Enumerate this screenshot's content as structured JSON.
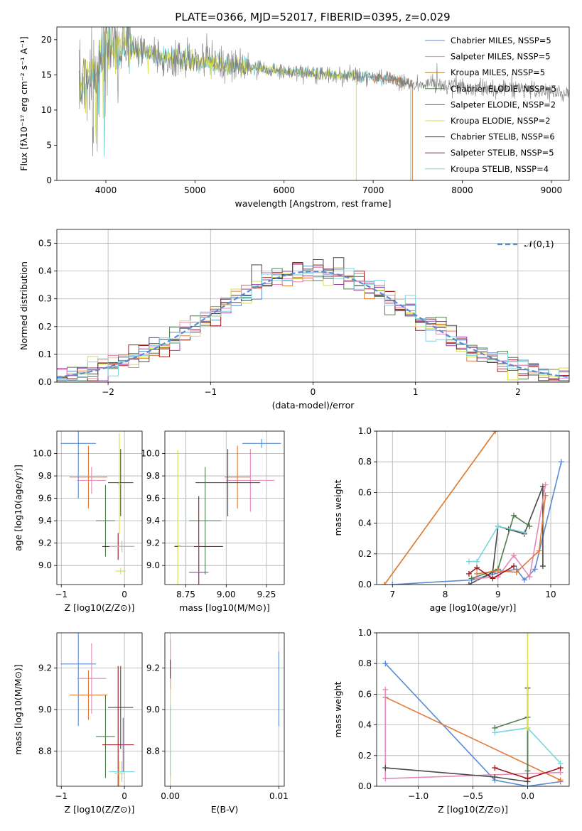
{
  "figure": {
    "title": "PLATE=0366, MJD=52017, FIBERID=0395, z=0.029"
  },
  "chart_data": [
    {
      "id": "spectrum",
      "type": "line",
      "xlabel": "wavelength [Angstrom, rest frame]",
      "ylabel": "Flux [fλ10⁻¹⁷ erg cm⁻² s⁻¹ A⁻¹]",
      "xlim": [
        3450,
        9200
      ],
      "ylim": [
        0,
        21.8
      ],
      "xticks": [
        4000,
        5000,
        6000,
        7000,
        8000,
        9000
      ],
      "yticks": [
        0,
        5,
        10,
        15,
        20
      ],
      "grid": false,
      "legend_position": "top-right",
      "legend": [
        {
          "label": "Chabrier MILES, N_SSP=5",
          "color": "#5b8bd5"
        },
        {
          "label": "Salpeter MILES, N_SSP=5",
          "color": "#e787b9"
        },
        {
          "label": "Kroupa MILES, N_SSP=5",
          "color": "#b87f2b"
        },
        {
          "label": "Chabrier ELODIE, N_SSP=5",
          "color": "#4f7f4f"
        },
        {
          "label": "Salpeter ELODIE, N_SSP=2",
          "color": "#9a43a8"
        },
        {
          "label": "Kroupa ELODIE, N_SSP=2",
          "color": "#d8e04a"
        },
        {
          "label": "Chabrier STELIB, N_SSP=6",
          "color": "#4a4a4a"
        },
        {
          "label": "Salpeter STELIB, N_SSP=5",
          "color": "#a01a1a"
        },
        {
          "label": "Kroupa STELIB, N_SSP=4",
          "color": "#7ad6dc"
        }
      ],
      "continuum": {
        "x": [
          3700,
          3800,
          3900,
          4000,
          4100,
          4200,
          4400,
          4600,
          4800,
          5000,
          5200,
          5400,
          5600,
          5800,
          6000,
          6200,
          6400,
          6600,
          6800,
          7000,
          7200,
          7400,
          7600,
          7800,
          8000,
          8200,
          8400,
          8600,
          8800,
          9000,
          9200
        ],
        "y": [
          12.5,
          14.5,
          16,
          18.5,
          18.8,
          19.2,
          18.3,
          17.7,
          17.2,
          17,
          16.7,
          16.3,
          16,
          15.8,
          15.5,
          15.3,
          15.1,
          15,
          14.8,
          14.6,
          14.4,
          13.8,
          13.6,
          13.5,
          13.4,
          13.3,
          13.1,
          13,
          12.8,
          12.5,
          12.3
        ]
      },
      "model_series": [
        {
          "color": "#7ad6dc",
          "x_range": [
            3700,
            7420
          ]
        },
        {
          "color": "#d8e04a",
          "x_range": [
            3700,
            6810
          ]
        },
        {
          "color": "#e07b39",
          "x_range": [
            7000,
            7440
          ]
        },
        {
          "color": "#808080",
          "x_range": [
            3700,
            9200
          ]
        }
      ]
    },
    {
      "id": "residuals",
      "type": "histogram",
      "xlabel": "(data-model)/error",
      "ylabel": "Normed distribution",
      "xlim": [
        -2.5,
        2.5
      ],
      "ylim": [
        0,
        0.55
      ],
      "xticks": [
        -2,
        -1,
        0,
        1,
        2
      ],
      "yticks": [
        0.0,
        0.1,
        0.2,
        0.3,
        0.4,
        0.5
      ],
      "grid": true,
      "legend_position": "top-right",
      "legend": [
        {
          "label": "𝒩(0,1)",
          "color": "#5b8bd5",
          "style": "dashed"
        }
      ],
      "bin_edges_start": -2.5,
      "bin_width": 0.1,
      "series_colors": [
        "#5b8bd5",
        "#e07b39",
        "#4f7f4f",
        "#a01a1a",
        "#9a43a8",
        "#d8e04a",
        "#e787b9",
        "#4a4a4a",
        "#7ad6dc"
      ],
      "density_curve": {
        "mean": 0,
        "sigma": 1
      }
    },
    {
      "id": "age_vs_Z",
      "type": "errorbar",
      "xlabel": "Z [log10(Z/Z⊙)]",
      "ylabel": "age  [log10(age/yr)]",
      "xlim": [
        -1.07,
        0.28
      ],
      "ylim": [
        8.83,
        10.2
      ],
      "xticks": [
        -1,
        0
      ],
      "yticks": [
        9.0,
        9.2,
        9.4,
        9.6,
        9.8,
        10.0
      ],
      "grid": true,
      "points": [
        {
          "x": -0.73,
          "y": 10.09,
          "xerr": 0.28,
          "yerr": 0.49,
          "color": "#5b8bd5"
        },
        {
          "x": -0.57,
          "y": 9.79,
          "xerr": 0.3,
          "yerr": 0.28,
          "color": "#e07b39"
        },
        {
          "x": -0.52,
          "y": 9.76,
          "xerr": 0.23,
          "yerr": 0.12,
          "color": "#e787b9"
        },
        {
          "x": -0.06,
          "y": 9.74,
          "xerr": 0.2,
          "yerr": 0.3,
          "color": "#4a4a4a"
        },
        {
          "x": -0.08,
          "y": 9.73,
          "xerr": 0.03,
          "yerr": 0.45,
          "color": "#d8e04a"
        },
        {
          "x": -0.3,
          "y": 9.4,
          "xerr": 0.15,
          "yerr": 0.32,
          "color": "#4f7f4f"
        },
        {
          "x": -0.1,
          "y": 9.17,
          "xerr": 0.25,
          "yerr": 0.12,
          "color": "#a01a1a"
        },
        {
          "x": -0.04,
          "y": 9.17,
          "xerr": 0.2,
          "yerr": 0.05,
          "color": "#7ad6dc"
        },
        {
          "x": -0.06,
          "y": 8.95,
          "xerr": 0.08,
          "yerr": 0.03,
          "color": "#d8e04a"
        }
      ]
    },
    {
      "id": "age_vs_mass",
      "type": "errorbar",
      "xlabel": "mass [log10(M/M⊙)]",
      "ylabel": "",
      "xlim": [
        8.62,
        9.36
      ],
      "ylim": [
        8.83,
        10.2
      ],
      "xticks": [
        8.75,
        9.0,
        9.25
      ],
      "xtick_labels": [
        "8.75",
        "9.00",
        "9.25"
      ],
      "yticks": [
        9.0,
        9.2,
        9.4,
        9.6,
        9.8,
        10.0
      ],
      "grid": true,
      "points": [
        {
          "x": 9.22,
          "y": 10.09,
          "xerr": 0.12,
          "yerr": 0.04,
          "color": "#5b8bd5"
        },
        {
          "x": 9.07,
          "y": 9.79,
          "xerr": 0.08,
          "yerr": 0.28,
          "color": "#e07b39"
        },
        {
          "x": 9.15,
          "y": 9.76,
          "xerr": 0.15,
          "yerr": 0.28,
          "color": "#e787b9"
        },
        {
          "x": 9.01,
          "y": 9.74,
          "xerr": 0.2,
          "yerr": 0.3,
          "color": "#4a4a4a"
        },
        {
          "x": 8.7,
          "y": 9.18,
          "xerr": 0.02,
          "yerr": 0.85,
          "color": "#d8e04a"
        },
        {
          "x": 8.87,
          "y": 9.4,
          "xerr": 0.1,
          "yerr": 0.48,
          "color": "#4f7f4f"
        },
        {
          "x": 8.83,
          "y": 9.17,
          "xerr": 0.15,
          "yerr": 0.45,
          "color": "#a01a1a"
        },
        {
          "x": 8.75,
          "y": 9.17,
          "xerr": 0.05,
          "yerr": 0.85,
          "color": "#7ad6dc"
        },
        {
          "x": 8.83,
          "y": 8.94,
          "xerr": 0.06,
          "yerr": 0.25,
          "color": "#9a43a8"
        }
      ]
    },
    {
      "id": "weight_vs_age",
      "type": "line",
      "xlabel": "age  [log10(age/yr)]",
      "ylabel": "mass weight",
      "xlim": [
        6.7,
        10.35
      ],
      "ylim": [
        0,
        1.0
      ],
      "xticks": [
        7,
        8,
        9,
        10
      ],
      "yticks": [
        0.0,
        0.2,
        0.4,
        0.6,
        0.8,
        1.0
      ],
      "grid": true,
      "series": [
        {
          "color": "#d8e04a",
          "points": [
            [
              6.85,
              0
            ],
            [
              8.95,
              1.0
            ]
          ]
        },
        {
          "color": "#e07b39",
          "points": [
            [
              6.85,
              0
            ],
            [
              8.95,
              1.0
            ]
          ]
        },
        {
          "color": "#5b8bd5",
          "points": [
            [
              7.0,
              0.0
            ],
            [
              8.5,
              0.03
            ],
            [
              9.05,
              0.08
            ],
            [
              9.35,
              0.1
            ],
            [
              9.5,
              0.03
            ],
            [
              9.7,
              0.1
            ],
            [
              10.2,
              0.8
            ]
          ]
        },
        {
          "color": "#4a4a4a",
          "points": [
            [
              8.45,
              0.0
            ],
            [
              8.9,
              0.08
            ],
            [
              9.0,
              0.38
            ],
            [
              9.2,
              0.36
            ],
            [
              9.5,
              0.33
            ],
            [
              9.85,
              0.64
            ],
            [
              9.85,
              0.12
            ]
          ]
        },
        {
          "color": "#4f7f4f",
          "points": [
            [
              8.5,
              0.04
            ],
            [
              9.0,
              0.1
            ],
            [
              9.3,
              0.45
            ],
            [
              9.6,
              0.38
            ]
          ]
        },
        {
          "color": "#e787b9",
          "points": [
            [
              8.6,
              0.04
            ],
            [
              9.0,
              0.05
            ],
            [
              9.3,
              0.19
            ],
            [
              9.6,
              0.05
            ],
            [
              9.9,
              0.65
            ]
          ]
        },
        {
          "color": "#e07b39",
          "points": [
            [
              8.6,
              0.07
            ],
            [
              9.0,
              0.09
            ],
            [
              9.35,
              0.08
            ],
            [
              9.78,
              0.22
            ],
            [
              9.9,
              0.58
            ]
          ]
        },
        {
          "color": "#a01a1a",
          "points": [
            [
              8.45,
              0.07
            ],
            [
              8.6,
              0.11
            ],
            [
              8.9,
              0.04
            ],
            [
              9.3,
              0.12
            ]
          ]
        },
        {
          "color": "#7ad6dc",
          "points": [
            [
              8.45,
              0.15
            ],
            [
              8.6,
              0.15
            ],
            [
              9.0,
              0.38
            ],
            [
              9.5,
              0.34
            ]
          ]
        }
      ]
    },
    {
      "id": "mass_vs_Z",
      "type": "errorbar",
      "xlabel": "Z [log10(Z/Z⊙)]",
      "ylabel": "mass [log10(M/M⊙)]",
      "xlim": [
        -1.07,
        0.28
      ],
      "ylim": [
        8.63,
        9.37
      ],
      "xticks": [
        -1,
        0
      ],
      "yticks": [
        8.8,
        9.0,
        9.2
      ],
      "grid": true,
      "points": [
        {
          "x": -0.73,
          "y": 9.22,
          "xerr": 0.28,
          "yerr": 0.3,
          "color": "#5b8bd5"
        },
        {
          "x": -0.57,
          "y": 9.07,
          "xerr": 0.3,
          "yerr": 0.12,
          "color": "#e07b39"
        },
        {
          "x": -0.52,
          "y": 9.15,
          "xerr": 0.23,
          "yerr": 0.17,
          "color": "#e787b9"
        },
        {
          "x": -0.06,
          "y": 9.01,
          "xerr": 0.2,
          "yerr": 0.2,
          "color": "#4a4a4a"
        },
        {
          "x": -0.3,
          "y": 8.87,
          "xerr": 0.15,
          "yerr": 0.2,
          "color": "#4f7f4f"
        },
        {
          "x": -0.1,
          "y": 8.83,
          "xerr": 0.25,
          "yerr": 0.38,
          "color": "#a01a1a"
        },
        {
          "x": -0.04,
          "y": 8.7,
          "xerr": 0.2,
          "yerr": 0.05,
          "color": "#7ad6dc"
        },
        {
          "x": -0.08,
          "y": 8.69,
          "xerr": 0.08,
          "yerr": 0.06,
          "color": "#d8e04a"
        },
        {
          "x": -0.02,
          "y": 8.83,
          "xerr": 0.02,
          "yerr": 0.13,
          "color": "#9a43a8"
        }
      ]
    },
    {
      "id": "mass_vs_ebv",
      "type": "errorbar",
      "xlabel": "E(B-V)",
      "ylabel": "",
      "xlim": [
        -0.0005,
        0.0105
      ],
      "ylim": [
        8.63,
        9.37
      ],
      "xticks": [
        0.0,
        0.01
      ],
      "xtick_labels": [
        "0.00",
        "0.01"
      ],
      "yticks": [
        8.8,
        9.0,
        9.2
      ],
      "grid": true,
      "points": [
        {
          "x": 0.0,
          "y": 9.22,
          "xerr": 0,
          "yerr": 0.12,
          "color": "#e787b9"
        },
        {
          "x": 0.0,
          "y": 9.17,
          "xerr": 0,
          "yerr": 0.07,
          "color": "#a01a1a"
        },
        {
          "x": 0.0,
          "y": 8.9,
          "xerr": 0,
          "yerr": 0.25,
          "color": "#d8e04a"
        },
        {
          "x": 0.0,
          "y": 8.85,
          "xerr": 0,
          "yerr": 0.17,
          "color": "#7ad6dc"
        },
        {
          "x": 0.01,
          "y": 9.1,
          "xerr": 0,
          "yerr": 0.18,
          "color": "#5b8bd5"
        }
      ]
    },
    {
      "id": "weight_vs_Z",
      "type": "line",
      "xlabel": "Z [log10(Z/Z⊙)]",
      "ylabel": "mass weight",
      "xlim": [
        -1.38,
        0.38
      ],
      "ylim": [
        0,
        1.0
      ],
      "xticks": [
        -1.0,
        -0.5,
        0.0
      ],
      "xtick_labels": [
        "−1.0",
        "−0.5",
        "0.0"
      ],
      "yticks": [
        0.0,
        0.2,
        0.4,
        0.6,
        0.8,
        1.0
      ],
      "grid": true,
      "series": [
        {
          "color": "#5b8bd5",
          "points": [
            [
              -1.3,
              0.8
            ],
            [
              -0.3,
              0.04
            ],
            [
              0.0,
              0.0
            ],
            [
              0.3,
              0.03
            ]
          ]
        },
        {
          "color": "#e07b39",
          "points": [
            [
              -1.3,
              0.58
            ],
            [
              0.3,
              0.04
            ]
          ]
        },
        {
          "color": "#e787b9",
          "points": [
            [
              -1.3,
              0.63
            ],
            [
              -1.3,
              0.05
            ],
            [
              0.3,
              0.09
            ]
          ]
        },
        {
          "color": "#4a4a4a",
          "points": [
            [
              -1.3,
              0.12
            ],
            [
              -0.3,
              0.06
            ],
            [
              0.0,
              0.03
            ],
            [
              0.0,
              0.64
            ]
          ]
        },
        {
          "color": "#4f7f4f",
          "points": [
            [
              -0.3,
              0.38
            ],
            [
              0.0,
              0.45
            ],
            [
              0.0,
              0.1
            ]
          ]
        },
        {
          "color": "#a01a1a",
          "points": [
            [
              -0.3,
              0.12
            ],
            [
              0.0,
              0.05
            ],
            [
              0.3,
              0.12
            ]
          ]
        },
        {
          "color": "#7ad6dc",
          "points": [
            [
              -0.3,
              0.35
            ],
            [
              0.0,
              0.38
            ],
            [
              0.3,
              0.15
            ]
          ]
        },
        {
          "color": "#d8e04a",
          "points": [
            [
              0.0,
              0.38
            ],
            [
              0.0,
              1.0
            ]
          ]
        }
      ]
    }
  ]
}
